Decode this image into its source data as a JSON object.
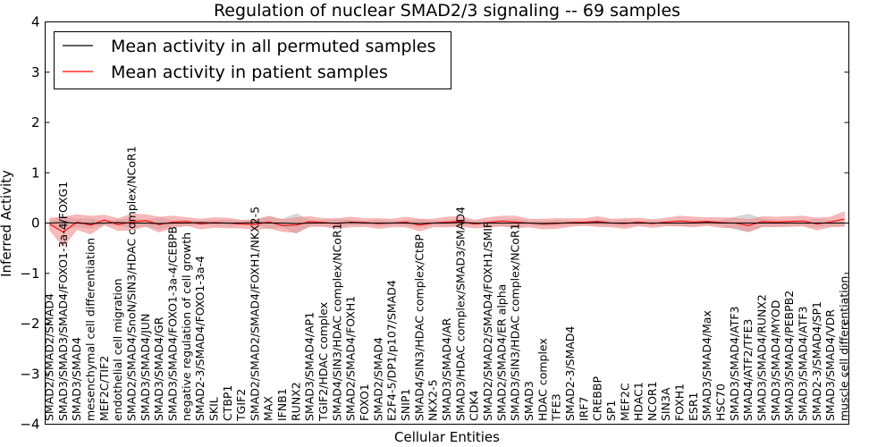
{
  "chart_data": {
    "type": "line",
    "title": "Regulation of nuclear SMAD2/3 signaling -- 69 samples",
    "xlabel": "Cellular Entities",
    "ylabel": "Inferred Activity",
    "ylim": [
      -4,
      4
    ],
    "yticks": [
      "−4",
      "−3",
      "−2",
      "−1",
      "0",
      "1",
      "2",
      "3",
      "4"
    ],
    "legend": {
      "position": "top-left",
      "entries": [
        {
          "label": "Mean activity in all permuted samples",
          "color": "#000000"
        },
        {
          "label": "Mean activity in patient samples",
          "color": "#ff0000"
        }
      ]
    },
    "colors": {
      "permuted": "#000000",
      "patient": "#ff0000",
      "patient_band": "#f08080",
      "permuted_band": "#bfbfbf"
    },
    "categories": [
      "SMAD2/SMAD2/SMAD4",
      "SMAD3/SMAD3/SMAD4/FOXO1-3a-4/FOXG1",
      "SMAD3/SMAD4",
      "mesenchymal cell differentiation",
      "MEF2C/TIF2",
      "endothelial cell migration",
      "SMAD2/SMAD4/SnoN/SIN3/HDAC complex/NCoR1",
      "SMAD3/SMAD4/JUN",
      "SMAD3/SMAD4/GR",
      "SMAD3/SMAD4/FOXO1-3a-4/CEBPB",
      "negative regulation of cell growth",
      "SMAD2-3/SMAD4/FOXO1-3a-4",
      "SKIL",
      "CTBP1",
      "TGIF2",
      "SMAD2/SMAD2/SMAD4/FOXH1/NKX2-5",
      "MAX",
      "IFNB1",
      "RUNX2",
      "SMAD3/SMAD4/AP1",
      "TGIF2/HDAC complex",
      "SMAD4/SIN3/HDAC complex/NCoR1",
      "SMAD2/SMAD4/FOXH1",
      "FOXO1",
      "SMAD2/SMAD4",
      "E2F4-5/DP1/p107/SMAD4",
      "SNIP1",
      "SMAD4/SIN3/HDAC complex/CtBP",
      "NKX2-5",
      "SMAD3/SMAD4/AR",
      "SMAD3/HDAC complex/SMAD3/SMAD4",
      "CDK4",
      "SMAD2/SMAD2/SMAD4/FOXH1/SMIF",
      "SMAD2/SMAD4/ER alpha",
      "SMAD3/SIN3/HDAC complex/NCoR1",
      "SMAD3",
      "HDAC complex",
      "TFE3",
      "SMAD2-3/SMAD4",
      "IRF7",
      "CREBBP",
      "SP1",
      "MEF2C",
      "HDAC1",
      "NCOR1",
      "SIN3A",
      "FOXH1",
      "ESR1",
      "SMAD3/SMAD4/Max",
      "HSC70",
      "SMAD3/SMAD4/ATF3",
      "SMAD4/ATF2/TFE3",
      "SMAD3/SMAD4/RUNX2",
      "SMAD3/SMAD4/MYOD",
      "SMAD3/SMAD4/PEBPB2",
      "SMAD3/SMAD4/ATF3",
      "SMAD2-3/SMAD4/SP1",
      "SMAD3/SMAD4/VDR",
      "muscle cell differentiation"
    ],
    "series": [
      {
        "name": "Mean activity in all permuted samples",
        "values": [
          0.0,
          0.01,
          0.0,
          -0.01,
          0.0,
          0.01,
          0.0,
          0.0,
          -0.01,
          0.0,
          0.0,
          0.01,
          0.0,
          0.0,
          0.0,
          0.01,
          0.0,
          0.0,
          -0.01,
          0.0,
          0.0,
          0.0,
          0.01,
          0.0,
          0.0,
          0.0,
          0.0,
          -0.01,
          0.0,
          0.0,
          0.01,
          0.0,
          0.0,
          0.0,
          0.0,
          0.0,
          -0.01,
          0.0,
          0.0,
          0.0,
          0.01,
          0.0,
          0.0,
          0.0,
          0.0,
          0.0,
          0.0,
          0.0,
          0.01,
          0.0,
          0.0,
          0.0,
          0.0,
          0.0,
          0.0,
          0.0,
          0.0,
          0.0,
          0.0
        ],
        "spread": [
          0.05,
          0.12,
          0.08,
          0.1,
          0.04,
          0.06,
          0.1,
          0.05,
          0.12,
          0.05,
          0.06,
          0.03,
          0.05,
          0.06,
          0.04,
          0.04,
          0.12,
          0.08,
          0.2,
          0.05,
          0.06,
          0.08,
          0.05,
          0.04,
          0.06,
          0.04,
          0.05,
          0.08,
          0.04,
          0.05,
          0.06,
          0.04,
          0.05,
          0.06,
          0.08,
          0.04,
          0.05,
          0.06,
          0.04,
          0.03,
          0.05,
          0.05,
          0.06,
          0.04,
          0.05,
          0.04,
          0.06,
          0.05,
          0.04,
          0.05,
          0.12,
          0.18,
          0.08,
          0.06,
          0.05,
          0.05,
          0.08,
          0.06,
          0.05
        ]
      },
      {
        "name": "Mean activity in patient samples",
        "values": [
          -0.02,
          -0.18,
          0.02,
          -0.04,
          0.06,
          -0.03,
          0.02,
          0.05,
          -0.03,
          0.02,
          0.03,
          -0.02,
          0.01,
          0.0,
          -0.02,
          -0.03,
          0.02,
          -0.05,
          -0.04,
          0.03,
          0.01,
          -0.01,
          0.02,
          0.01,
          -0.01,
          0.0,
          0.02,
          -0.04,
          0.0,
          0.02,
          0.03,
          -0.02,
          0.01,
          0.04,
          0.02,
          0.0,
          -0.02,
          -0.01,
          0.01,
          0.02,
          0.03,
          0.0,
          -0.01,
          0.02,
          -0.01,
          0.02,
          0.04,
          0.02,
          0.03,
          0.01,
          0.0,
          -0.05,
          0.03,
          0.02,
          0.03,
          0.04,
          -0.02,
          0.02,
          0.08
        ],
        "spread": [
          0.12,
          0.3,
          0.15,
          0.18,
          0.1,
          0.12,
          0.16,
          0.12,
          0.15,
          0.12,
          0.08,
          0.1,
          0.1,
          0.1,
          0.08,
          0.1,
          0.12,
          0.12,
          0.15,
          0.1,
          0.08,
          0.1,
          0.1,
          0.08,
          0.1,
          0.08,
          0.1,
          0.12,
          0.08,
          0.1,
          0.1,
          0.08,
          0.1,
          0.1,
          0.12,
          0.08,
          0.1,
          0.1,
          0.08,
          0.07,
          0.1,
          0.08,
          0.1,
          0.08,
          0.08,
          0.08,
          0.1,
          0.1,
          0.08,
          0.1,
          0.1,
          0.12,
          0.1,
          0.1,
          0.1,
          0.1,
          0.12,
          0.1,
          0.15
        ]
      }
    ]
  }
}
